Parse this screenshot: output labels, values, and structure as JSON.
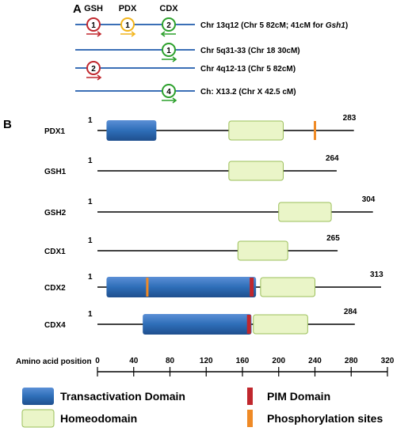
{
  "panel_a": {
    "label": "A",
    "column_headers": [
      "GSH",
      "PDX",
      "CDX"
    ],
    "clusters": [
      {
        "location": "Chr 13q12 (Chr 5 82cM; 41cM for ",
        "location_italic": "Gsh1",
        "location_tail": ")",
        "genes": [
          {
            "family": "GSH",
            "number": "1",
            "color": "#c0272d",
            "arrow": "right"
          },
          {
            "family": "PDX",
            "number": "1",
            "color": "#f2b41a",
            "arrow": "right"
          },
          {
            "family": "CDX",
            "number": "2",
            "color": "#2ca02c",
            "arrow": "left"
          }
        ]
      },
      {
        "location": "Chr 5q31-33 (Chr 18 30cM)",
        "genes": [
          {
            "family": "CDX",
            "number": "1",
            "color": "#2ca02c",
            "arrow": "right"
          }
        ]
      },
      {
        "location": "Chr 4q12-13 (Chr 5 82cM)",
        "genes": [
          {
            "family": "GSH",
            "number": "2",
            "color": "#c0272d",
            "arrow": "right"
          }
        ]
      },
      {
        "location": "Ch: X13.2 (Chr X 42.5 cM)",
        "genes": [
          {
            "family": "CDX",
            "number": "4",
            "color": "#2ca02c",
            "arrow": "right"
          }
        ]
      }
    ]
  },
  "panel_b": {
    "label": "B",
    "axis_label": "Amino acid position",
    "axis_ticks": [
      0,
      40,
      80,
      120,
      160,
      200,
      240,
      280,
      320
    ],
    "axis_range": [
      0,
      320
    ],
    "proteins": [
      {
        "name": "PDX1",
        "start_label": "1",
        "length": 283,
        "length_label": "283",
        "transactivation": [
          [
            10,
            65
          ]
        ],
        "homeodomain": [
          [
            145,
            205
          ]
        ],
        "pim": [],
        "phospho": [
          240
        ]
      },
      {
        "name": "GSH1",
        "start_label": "1",
        "length": 264,
        "length_label": "264",
        "transactivation": [],
        "homeodomain": [
          [
            145,
            205
          ]
        ],
        "pim": [],
        "phospho": []
      },
      {
        "name": "GSH2",
        "start_label": "1",
        "length": 304,
        "length_label": "304",
        "transactivation": [],
        "homeodomain": [
          [
            200,
            258
          ]
        ],
        "pim": [],
        "phospho": []
      },
      {
        "name": "CDX1",
        "start_label": "1",
        "length": 265,
        "length_label": "265",
        "transactivation": [],
        "homeodomain": [
          [
            155,
            210
          ]
        ],
        "pim": [],
        "phospho": []
      },
      {
        "name": "CDX2",
        "start_label": "1",
        "length": 313,
        "length_label": "313",
        "transactivation": [
          [
            10,
            175
          ]
        ],
        "homeodomain": [
          [
            180,
            240
          ]
        ],
        "pim": [
          168
        ],
        "phospho": [
          55
        ]
      },
      {
        "name": "CDX4",
        "start_label": "1",
        "length": 284,
        "length_label": "284",
        "transactivation": [
          [
            50,
            170
          ]
        ],
        "homeodomain": [
          [
            172,
            232
          ]
        ],
        "pim": [
          165
        ],
        "phospho": []
      }
    ]
  },
  "legend": {
    "transactivation": "Transactivation Domain",
    "homeodomain": "Homeodomain",
    "pim": "PIM Domain",
    "phospho": "Phosphorylation sites"
  },
  "colors": {
    "transactivation": "#2e6eb8",
    "homeodomain": "#eaf5c8",
    "homeodomain_stroke": "#9bbf5a",
    "pim": "#c0272d",
    "phospho": "#ef8a26",
    "chromosome": "#3b6fb6"
  }
}
